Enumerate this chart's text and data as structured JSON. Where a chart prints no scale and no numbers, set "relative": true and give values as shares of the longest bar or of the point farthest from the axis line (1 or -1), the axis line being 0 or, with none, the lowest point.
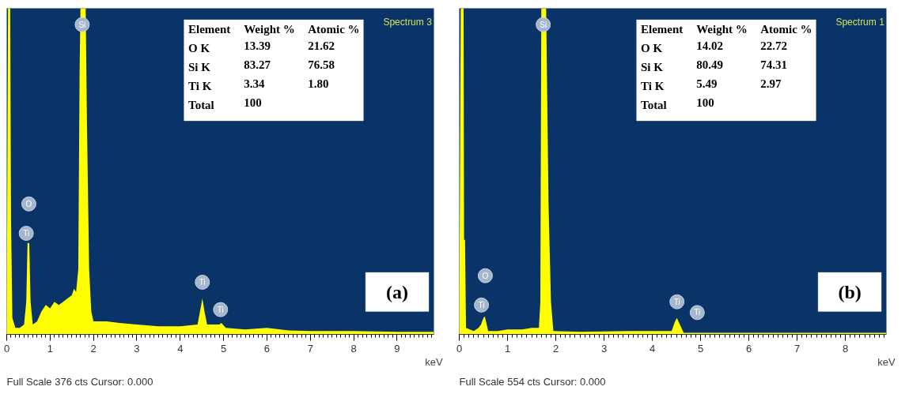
{
  "chart_data": [
    {
      "type": "area",
      "relative": true,
      "xlabel": "keV",
      "xlim": [
        0,
        9.85
      ],
      "xticks": [
        0,
        1,
        2,
        3,
        4,
        5,
        6,
        7,
        8,
        9
      ],
      "tick_labels": "x",
      "grid": false,
      "series": [
        {
          "color": "#ffff00",
          "x": [
            0,
            0.03,
            0.08,
            0.1,
            0.13,
            0.2,
            0.3,
            0.4,
            0.45,
            0.48,
            0.52,
            0.55,
            0.6,
            0.7,
            0.8,
            0.9,
            1.0,
            1.1,
            1.2,
            1.3,
            1.4,
            1.5,
            1.55,
            1.6,
            1.65,
            1.68,
            1.7,
            1.82,
            1.85,
            1.9,
            1.95,
            2.0,
            2.3,
            2.6,
            3.0,
            3.5,
            4.0,
            4.4,
            4.47,
            4.51,
            4.56,
            4.62,
            4.9,
            4.95,
            5.05,
            5.5,
            6.0,
            6.5,
            7.0,
            8.0,
            9.0,
            9.85
          ],
          "values": [
            0,
            1,
            1,
            0.35,
            0.05,
            0.02,
            0.02,
            0.03,
            0.1,
            0.28,
            0.28,
            0.1,
            0.03,
            0.04,
            0.07,
            0.09,
            0.08,
            0.1,
            0.09,
            0.1,
            0.11,
            0.12,
            0.14,
            0.13,
            0.2,
            0.8,
            1,
            1,
            0.65,
            0.2,
            0.07,
            0.04,
            0.04,
            0.035,
            0.03,
            0.025,
            0.025,
            0.03,
            0.08,
            0.11,
            0.07,
            0.03,
            0.03,
            0.035,
            0.02,
            0.015,
            0.02,
            0.012,
            0.01,
            0.01,
            0.008,
            0.008
          ]
        }
      ],
      "annotations": [
        "Spectrum 3",
        "Element",
        "Weight %",
        "Atomic %",
        "O K",
        "13.39",
        "21.62",
        "Si K",
        "83.27",
        "76.58",
        "Ti K",
        "3.34",
        "1.80",
        "Total",
        "100",
        {
          "text": "O",
          "x": 0.51,
          "y": 0.4
        },
        {
          "text": "Ti",
          "x": 0.45,
          "y": 0.31
        },
        {
          "text": "Si",
          "x": 1.74,
          "y": 0.95
        },
        {
          "text": "Ti",
          "x": 4.51,
          "y": 0.16
        },
        {
          "text": "Ti",
          "x": 4.93,
          "y": 0.076
        },
        "(a)",
        "Full Scale 376 cts Cursor: 0.000"
      ]
    },
    {
      "type": "area",
      "relative": true,
      "xlabel": "keV",
      "xlim": [
        0,
        8.85
      ],
      "xticks": [
        0,
        1,
        2,
        3,
        4,
        5,
        6,
        7,
        8
      ],
      "tick_labels": "x",
      "grid": false,
      "series": [
        {
          "color": "#ffff00",
          "x": [
            0,
            0.03,
            0.09,
            0.1,
            0.12,
            0.14,
            0.3,
            0.4,
            0.45,
            0.5,
            0.53,
            0.6,
            0.8,
            1.0,
            1.3,
            1.5,
            1.65,
            1.68,
            1.7,
            1.8,
            1.85,
            1.9,
            1.95,
            2.5,
            3.5,
            4.4,
            4.47,
            4.51,
            4.57,
            4.65,
            5.0,
            6.0,
            7.0,
            8.85
          ],
          "values": [
            0,
            1,
            1,
            0.29,
            0.29,
            0.02,
            0.01,
            0.02,
            0.03,
            0.05,
            0.055,
            0.01,
            0.01,
            0.015,
            0.015,
            0.02,
            0.02,
            0.1,
            1,
            1,
            0.4,
            0.1,
            0.01,
            0.008,
            0.01,
            0.01,
            0.04,
            0.05,
            0.03,
            0.005,
            0.005,
            0.005,
            0.005,
            0.005
          ]
        }
      ],
      "annotations": [
        "Spectrum 1",
        "Element",
        "Weight %",
        "Atomic %",
        "O K",
        "14.02",
        "22.72",
        "Si K",
        "80.49",
        "74.31",
        "Ti K",
        "5.49",
        "2.97",
        "Total",
        "100",
        {
          "text": "O",
          "x": 0.54,
          "y": 0.18
        },
        {
          "text": "Ti",
          "x": 0.46,
          "y": 0.09
        },
        {
          "text": "Si",
          "x": 1.74,
          "y": 0.95
        },
        {
          "text": "Ti",
          "x": 4.51,
          "y": 0.1
        },
        {
          "text": "Ti",
          "x": 4.93,
          "y": 0.067
        },
        "(b)",
        "Full Scale 554 cts Cursor: 0.000"
      ]
    }
  ]
}
